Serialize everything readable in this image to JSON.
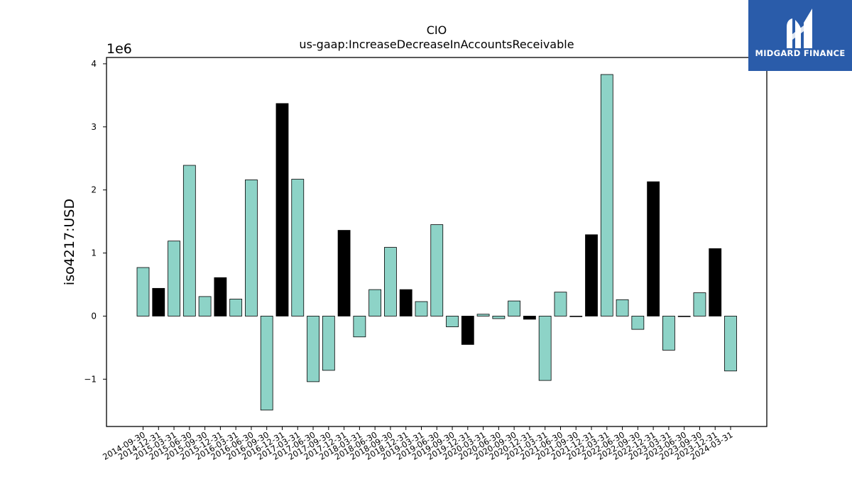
{
  "chart_data": {
    "type": "bar",
    "title": "CIO",
    "subtitle": "us-gaap:IncreaseDecreaseInAccountsReceivable",
    "ylabel": "iso4217:USD",
    "xlabel": "",
    "y_scale_label": "1e6",
    "y_multiplier": 1000000,
    "ylim": [
      -1.75,
      4.1
    ],
    "yticks": [
      -1,
      0,
      1,
      2,
      3,
      4
    ],
    "grid": false,
    "categories": [
      "2014-09-30",
      "2014-12-31",
      "2015-03-31",
      "2015-06-30",
      "2015-09-30",
      "2015-12-31",
      "2016-03-31",
      "2016-06-30",
      "2016-09-30",
      "2016-12-31",
      "2017-03-31",
      "2017-06-30",
      "2017-09-30",
      "2017-12-31",
      "2018-03-31",
      "2018-06-30",
      "2018-09-30",
      "2018-12-31",
      "2019-03-31",
      "2019-06-30",
      "2019-09-30",
      "2019-12-31",
      "2020-03-31",
      "2020-06-30",
      "2020-09-30",
      "2020-12-31",
      "2021-03-31",
      "2021-06-30",
      "2021-09-30",
      "2021-12-31",
      "2022-03-31",
      "2022-06-30",
      "2022-09-30",
      "2022-12-31",
      "2023-03-31",
      "2023-06-30",
      "2023-09-30",
      "2023-12-31",
      "2024-03-31"
    ],
    "values": [
      0.77,
      0.44,
      1.19,
      2.39,
      0.31,
      0.61,
      0.27,
      2.16,
      -1.49,
      3.37,
      2.17,
      -1.04,
      -0.86,
      1.36,
      -0.33,
      0.42,
      1.09,
      0.42,
      0.23,
      1.45,
      -0.17,
      -0.45,
      0.03,
      -0.04,
      0.24,
      -0.05,
      -1.02,
      0.38,
      0.0,
      1.29,
      3.83,
      0.26,
      -0.21,
      2.13,
      -0.54,
      0.0,
      0.37,
      1.07,
      -0.87
    ],
    "highlight": [
      false,
      true,
      false,
      false,
      false,
      true,
      false,
      false,
      false,
      true,
      false,
      false,
      false,
      true,
      false,
      false,
      false,
      true,
      false,
      false,
      false,
      true,
      false,
      false,
      false,
      true,
      false,
      false,
      false,
      true,
      false,
      false,
      false,
      true,
      false,
      false,
      false,
      true,
      false
    ],
    "colors": {
      "bar": "#8dd3c7",
      "highlight_bar": "#000000",
      "edge": "#000000"
    }
  },
  "logo": {
    "text": "MIDGARD FINANCE",
    "background": "#2a5caa"
  }
}
